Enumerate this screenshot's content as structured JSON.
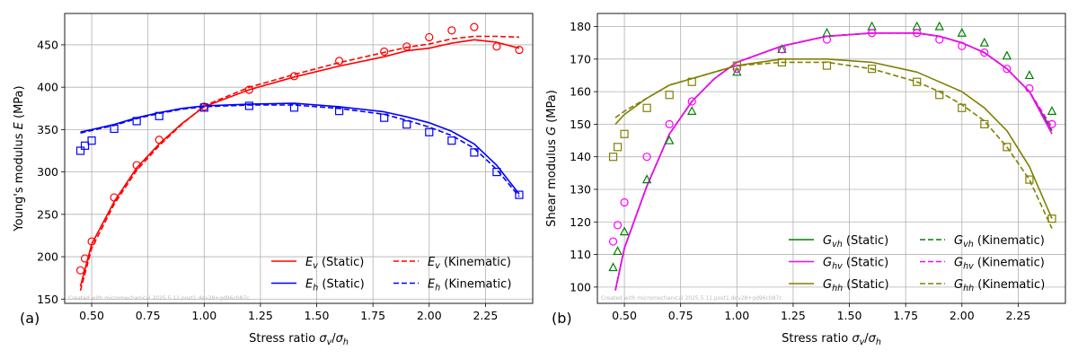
{
  "chart_data": [
    {
      "type": "line",
      "panel": "(a)",
      "xlabel": "Stress ratio σv/σh",
      "ylabel": "Young's modulus E (MPa)",
      "xlim": [
        0.38,
        2.46
      ],
      "ylim": [
        145,
        487
      ],
      "xticks": [
        "0.50",
        "0.75",
        "1.00",
        "1.25",
        "1.50",
        "1.75",
        "2.00",
        "2.25"
      ],
      "yticks": [
        "150",
        "200",
        "250",
        "300",
        "350",
        "400",
        "450"
      ],
      "grid": true,
      "legend_position": "bottom-right",
      "watermark": "Created with micromechanical 2025.5.11.post1.dev28+gd96cb87c",
      "series": [
        {
          "name": "Ev (Static)",
          "color": "#ff0000",
          "style": "solid",
          "x": [
            0.45,
            0.5,
            0.6,
            0.7,
            0.8,
            0.9,
            1.0,
            1.2,
            1.4,
            1.6,
            1.8,
            1.9,
            2.0,
            2.1,
            2.2,
            2.3,
            2.4
          ],
          "y": [
            165,
            215,
            265,
            305,
            333,
            357,
            377,
            397,
            412,
            425,
            436,
            443,
            446,
            452,
            456,
            453,
            446
          ]
        },
        {
          "name": "Eh (Static)",
          "color": "#0000ff",
          "style": "solid",
          "x": [
            0.45,
            0.5,
            0.6,
            0.7,
            0.8,
            0.9,
            1.0,
            1.2,
            1.4,
            1.6,
            1.8,
            1.9,
            2.0,
            2.1,
            2.2,
            2.3,
            2.4
          ],
          "y": [
            347,
            350,
            356,
            364,
            370,
            375,
            378,
            380,
            381,
            377,
            371,
            365,
            358,
            348,
            333,
            308,
            274
          ]
        },
        {
          "name": "Ev (Kinematic)",
          "color": "#ff0000",
          "style": "dashed",
          "x": [
            0.45,
            0.5,
            0.6,
            0.7,
            0.8,
            0.9,
            1.0,
            1.2,
            1.4,
            1.6,
            1.8,
            1.9,
            2.0,
            2.1,
            2.2,
            2.3,
            2.4
          ],
          "y": [
            160,
            210,
            262,
            302,
            331,
            356,
            378,
            400,
            415,
            429,
            441,
            447,
            451,
            457,
            460,
            460,
            459
          ]
        },
        {
          "name": "Eh (Kinematic)",
          "color": "#0000ff",
          "style": "dashed",
          "x": [
            0.45,
            0.5,
            0.6,
            0.7,
            0.8,
            0.9,
            1.0,
            1.2,
            1.4,
            1.6,
            1.8,
            1.9,
            2.0,
            2.1,
            2.2,
            2.3,
            2.4
          ],
          "y": [
            346,
            349,
            355,
            363,
            369,
            374,
            377,
            379,
            379,
            375,
            368,
            361,
            353,
            343,
            328,
            303,
            271
          ]
        }
      ],
      "markers": [
        {
          "series": "Ev",
          "color": "#ff0000",
          "shape": "circle",
          "x": [
            0.45,
            0.47,
            0.5,
            0.6,
            0.7,
            0.8,
            1.0,
            1.2,
            1.4,
            1.6,
            1.8,
            1.9,
            2.0,
            2.1,
            2.2,
            2.3,
            2.4
          ],
          "y": [
            184,
            198,
            218,
            270,
            308,
            338,
            377,
            397,
            413,
            431,
            442,
            448,
            459,
            467,
            471,
            448,
            444
          ]
        },
        {
          "series": "Eh",
          "color": "#0000ff",
          "shape": "square",
          "x": [
            0.45,
            0.47,
            0.5,
            0.6,
            0.7,
            0.8,
            1.0,
            1.2,
            1.4,
            1.6,
            1.8,
            1.9,
            2.0,
            2.1,
            2.2,
            2.3,
            2.4
          ],
          "y": [
            325,
            331,
            337,
            351,
            360,
            366,
            376,
            378,
            376,
            372,
            364,
            356,
            347,
            337,
            323,
            300,
            273
          ]
        }
      ],
      "legend": [
        {
          "label": "Ev (Static)",
          "color": "#ff0000",
          "style": "solid"
        },
        {
          "label": "Eh (Static)",
          "color": "#0000ff",
          "style": "solid"
        },
        {
          "label": "Ev (Kinematic)",
          "color": "#ff0000",
          "style": "dashed"
        },
        {
          "label": "Eh (Kinematic)",
          "color": "#0000ff",
          "style": "dashed"
        }
      ]
    },
    {
      "type": "line",
      "panel": "(b)",
      "xlabel": "Stress ratio σv/σh",
      "ylabel": "Shear modulus G (MPa)",
      "xlim": [
        0.38,
        2.46
      ],
      "ylim": [
        95,
        184
      ],
      "xticks": [
        "0.50",
        "0.75",
        "1.00",
        "1.25",
        "1.50",
        "1.75",
        "2.00",
        "2.25"
      ],
      "yticks": [
        "100",
        "110",
        "120",
        "130",
        "140",
        "150",
        "160",
        "170",
        "180"
      ],
      "grid": true,
      "legend_position": "bottom-right",
      "watermark": "Created with micromechanical 2025.5.11.post1.dev28+gd96cb87c",
      "series": [
        {
          "name": "Gvh (Static)",
          "color": "#008000",
          "style": "solid",
          "x": [
            0.46,
            0.5,
            0.6,
            0.7,
            0.8,
            0.9,
            1.0,
            1.2,
            1.4,
            1.6,
            1.8,
            1.9,
            2.0,
            2.1,
            2.2,
            2.3,
            2.4
          ],
          "y": [
            99,
            112,
            131,
            147,
            157,
            164,
            169,
            174,
            177,
            178,
            178,
            177,
            175,
            172,
            167,
            160,
            148
          ]
        },
        {
          "name": "Ghv (Static)",
          "color": "#ff00ff",
          "style": "solid",
          "x": [
            0.46,
            0.5,
            0.6,
            0.7,
            0.8,
            0.9,
            1.0,
            1.2,
            1.4,
            1.6,
            1.8,
            1.9,
            2.0,
            2.1,
            2.2,
            2.3,
            2.4
          ],
          "y": [
            99,
            112,
            131,
            147,
            157,
            164,
            169,
            174,
            177,
            178,
            178,
            177,
            175,
            172,
            167,
            160,
            147
          ]
        },
        {
          "name": "Ghh (Static)",
          "color": "#808000",
          "style": "solid",
          "x": [
            0.46,
            0.5,
            0.6,
            0.7,
            0.8,
            0.9,
            1.0,
            1.2,
            1.4,
            1.6,
            1.8,
            1.9,
            2.0,
            2.1,
            2.2,
            2.3,
            2.4
          ],
          "y": [
            150,
            153,
            158,
            162,
            164,
            166,
            168,
            170,
            170,
            169,
            166,
            163,
            160,
            155,
            148,
            137,
            121
          ]
        },
        {
          "name": "Gvh (Kinematic)",
          "color": "#008000",
          "style": "dashed",
          "x": [
            0.46,
            0.5,
            0.6,
            0.7,
            0.8,
            0.9,
            1.0,
            1.2,
            1.4,
            1.6,
            1.8,
            1.9,
            2.0,
            2.1,
            2.2,
            2.3,
            2.4
          ],
          "y": [
            99,
            112,
            131,
            147,
            157,
            164,
            169,
            174,
            177,
            178,
            178,
            177,
            175,
            172,
            167,
            160,
            149
          ]
        },
        {
          "name": "Ghv (Kinematic)",
          "color": "#ff00ff",
          "style": "dashed",
          "x": [
            0.46,
            0.5,
            0.6,
            0.7,
            0.8,
            0.9,
            1.0,
            1.2,
            1.4,
            1.6,
            1.8,
            1.9,
            2.0,
            2.1,
            2.2,
            2.3,
            2.4
          ],
          "y": [
            99,
            112,
            131,
            147,
            157,
            164,
            169,
            174,
            177,
            178,
            178,
            177,
            175,
            172,
            167,
            160,
            149
          ]
        },
        {
          "name": "Ghh (Kinematic)",
          "color": "#808000",
          "style": "dashed",
          "x": [
            0.46,
            0.5,
            0.6,
            0.7,
            0.8,
            0.9,
            1.0,
            1.2,
            1.4,
            1.6,
            1.8,
            1.9,
            2.0,
            2.1,
            2.2,
            2.3,
            2.4
          ],
          "y": [
            152,
            154,
            158,
            162,
            164,
            166,
            168,
            169,
            169,
            167,
            163,
            160,
            156,
            151,
            143,
            133,
            118
          ]
        }
      ],
      "markers": [
        {
          "series": "Gvh",
          "color": "#008000",
          "shape": "triangle",
          "x": [
            0.45,
            0.47,
            0.5,
            0.6,
            0.7,
            0.8,
            1.0,
            1.2,
            1.4,
            1.6,
            1.8,
            1.9,
            2.0,
            2.1,
            2.2,
            2.3,
            2.4
          ],
          "y": [
            106,
            111,
            117,
            133,
            145,
            154,
            166,
            173,
            178,
            180,
            180,
            180,
            178,
            175,
            171,
            165,
            154
          ]
        },
        {
          "series": "Ghv",
          "color": "#ff00ff",
          "shape": "circle",
          "x": [
            0.45,
            0.47,
            0.5,
            0.6,
            0.7,
            0.8,
            1.0,
            1.2,
            1.4,
            1.6,
            1.8,
            1.9,
            2.0,
            2.1,
            2.2,
            2.3,
            2.4
          ],
          "y": [
            114,
            119,
            126,
            140,
            150,
            157,
            167,
            173,
            176,
            178,
            178,
            176,
            174,
            172,
            167,
            161,
            150
          ]
        },
        {
          "series": "Ghh",
          "color": "#808000",
          "shape": "square",
          "x": [
            0.45,
            0.47,
            0.5,
            0.6,
            0.7,
            0.8,
            1.0,
            1.2,
            1.4,
            1.6,
            1.8,
            1.9,
            2.0,
            2.1,
            2.2,
            2.3,
            2.4
          ],
          "y": [
            140,
            143,
            147,
            155,
            159,
            163,
            168,
            169,
            168,
            167,
            163,
            159,
            155,
            150,
            143,
            133,
            121
          ]
        }
      ],
      "legend": [
        {
          "label": "Gvh (Static)",
          "color": "#008000",
          "style": "solid"
        },
        {
          "label": "Ghv (Static)",
          "color": "#ff00ff",
          "style": "solid"
        },
        {
          "label": "Ghh (Static)",
          "color": "#808000",
          "style": "solid"
        },
        {
          "label": "Gvh (Kinematic)",
          "color": "#008000",
          "style": "dashed"
        },
        {
          "label": "Ghv (Kinematic)",
          "color": "#ff00ff",
          "style": "dashed"
        },
        {
          "label": "Ghh (Kinematic)",
          "color": "#808000",
          "style": "dashed"
        }
      ]
    }
  ]
}
